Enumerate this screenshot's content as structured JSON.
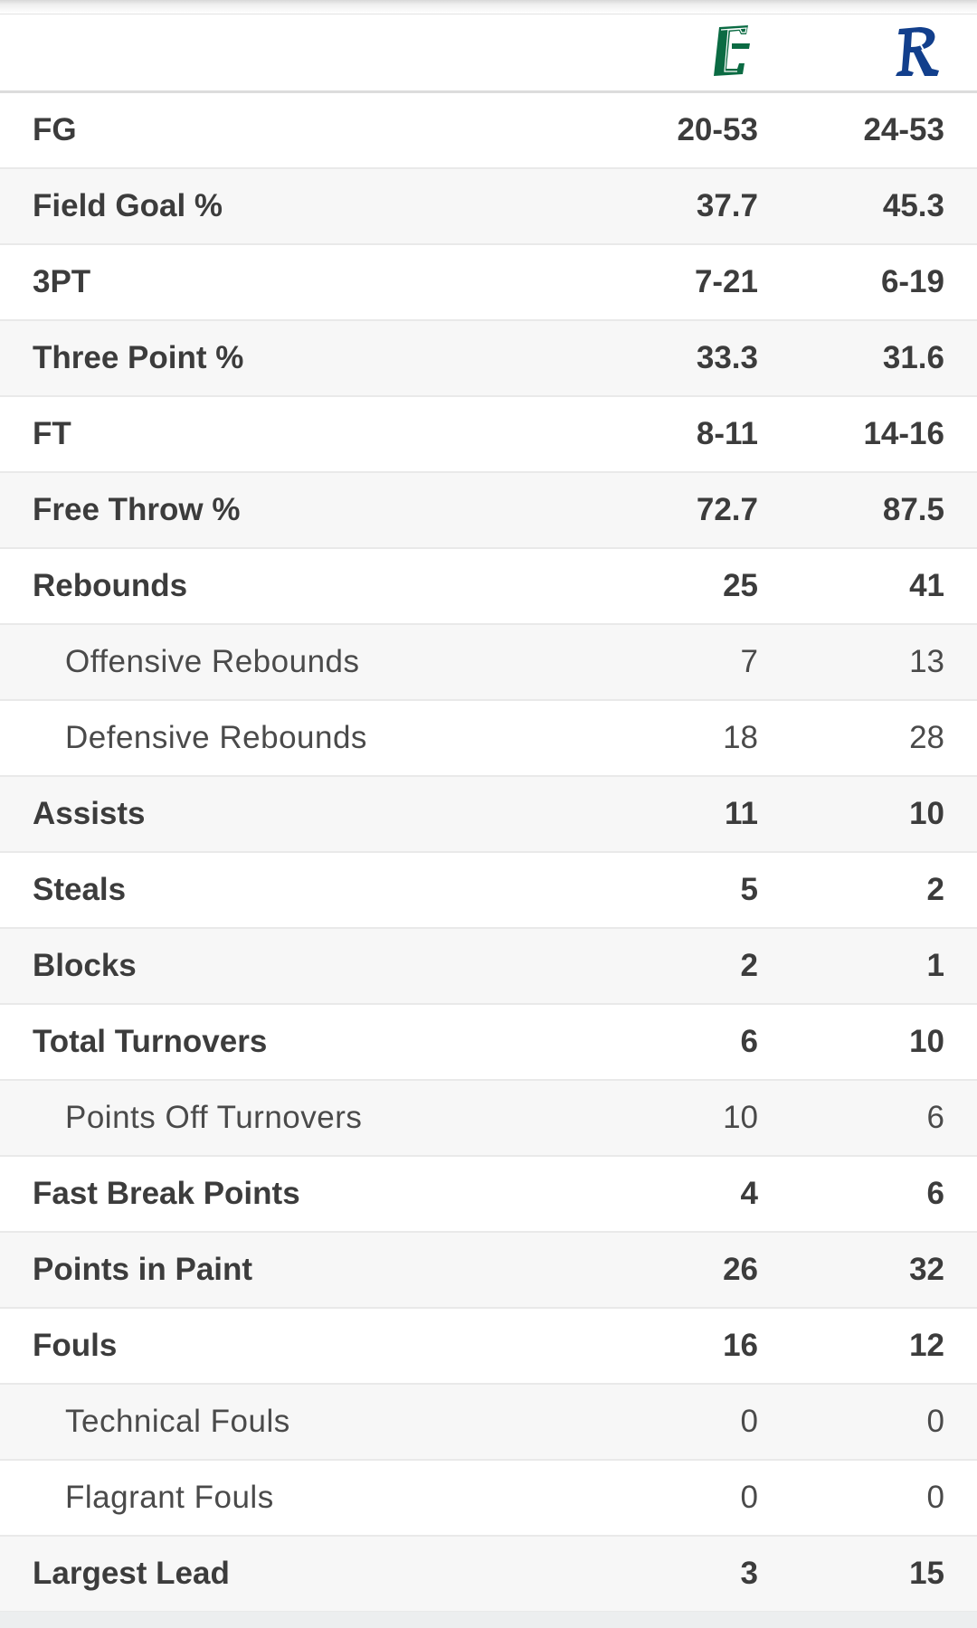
{
  "teams": [
    {
      "logo_icon": "charlotte-c-logo-icon",
      "color": "#0b6b43"
    },
    {
      "logo_icon": "rice-r-logo-icon",
      "color": "#123f8c"
    }
  ],
  "stats": [
    {
      "label": "FG",
      "team_a": "20-53",
      "team_b": "24-53",
      "sub": false
    },
    {
      "label": "Field Goal %",
      "team_a": "37.7",
      "team_b": "45.3",
      "sub": false
    },
    {
      "label": "3PT",
      "team_a": "7-21",
      "team_b": "6-19",
      "sub": false
    },
    {
      "label": "Three Point %",
      "team_a": "33.3",
      "team_b": "31.6",
      "sub": false
    },
    {
      "label": "FT",
      "team_a": "8-11",
      "team_b": "14-16",
      "sub": false
    },
    {
      "label": "Free Throw %",
      "team_a": "72.7",
      "team_b": "87.5",
      "sub": false
    },
    {
      "label": "Rebounds",
      "team_a": "25",
      "team_b": "41",
      "sub": false
    },
    {
      "label": "Offensive Rebounds",
      "team_a": "7",
      "team_b": "13",
      "sub": true
    },
    {
      "label": "Defensive Rebounds",
      "team_a": "18",
      "team_b": "28",
      "sub": true
    },
    {
      "label": "Assists",
      "team_a": "11",
      "team_b": "10",
      "sub": false
    },
    {
      "label": "Steals",
      "team_a": "5",
      "team_b": "2",
      "sub": false
    },
    {
      "label": "Blocks",
      "team_a": "2",
      "team_b": "1",
      "sub": false
    },
    {
      "label": "Total Turnovers",
      "team_a": "6",
      "team_b": "10",
      "sub": false
    },
    {
      "label": "Points Off Turnovers",
      "team_a": "10",
      "team_b": "6",
      "sub": true
    },
    {
      "label": "Fast Break Points",
      "team_a": "4",
      "team_b": "6",
      "sub": false
    },
    {
      "label": "Points in Paint",
      "team_a": "26",
      "team_b": "32",
      "sub": false
    },
    {
      "label": "Fouls",
      "team_a": "16",
      "team_b": "12",
      "sub": false
    },
    {
      "label": "Technical Fouls",
      "team_a": "0",
      "team_b": "0",
      "sub": true
    },
    {
      "label": "Flagrant Fouls",
      "team_a": "0",
      "team_b": "0",
      "sub": true
    },
    {
      "label": "Largest Lead",
      "team_a": "3",
      "team_b": "15",
      "sub": false
    }
  ]
}
